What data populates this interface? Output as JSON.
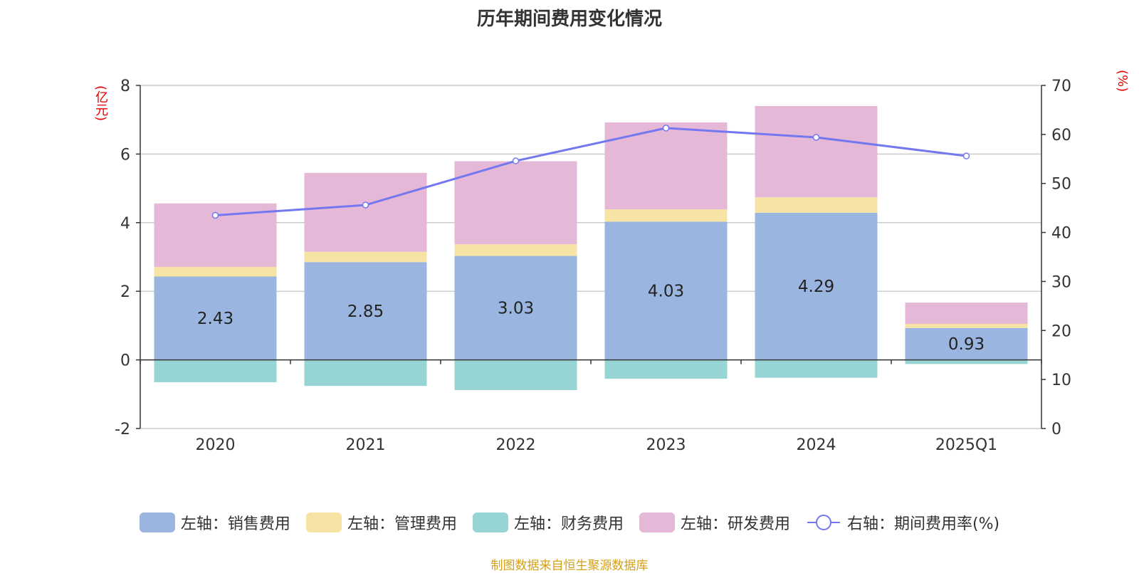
{
  "chart_data": {
    "type": "bar",
    "title": "历年期间费用变化情况",
    "left_unit": "(亿元)",
    "right_unit": "(%)",
    "categories": [
      "2020",
      "2021",
      "2022",
      "2023",
      "2024",
      "2025Q1"
    ],
    "left_axis": {
      "ylim": [
        -2,
        8
      ],
      "ticks": [
        "-2",
        "0",
        "2",
        "4",
        "6",
        "8"
      ]
    },
    "right_axis": {
      "ylim": [
        0,
        70
      ],
      "ticks": [
        "0",
        "10",
        "20",
        "30",
        "40",
        "50",
        "60",
        "70"
      ]
    },
    "grid": true,
    "legend_position": "bottom",
    "series": [
      {
        "name": "左轴：销售费用",
        "type": "bar",
        "axis": "left",
        "color": "#9ab6e0",
        "values": [
          2.43,
          2.85,
          3.03,
          4.03,
          4.29,
          0.93
        ],
        "labels": [
          "2.43",
          "2.85",
          "3.03",
          "4.03",
          "4.29",
          "0.93"
        ]
      },
      {
        "name": "左轴：管理费用",
        "type": "bar",
        "axis": "left",
        "color": "#f7e3a3",
        "values": [
          0.28,
          0.3,
          0.34,
          0.36,
          0.45,
          0.12
        ]
      },
      {
        "name": "左轴：财务费用",
        "type": "bar",
        "axis": "left",
        "color": "#97d4d4",
        "values": [
          -0.65,
          -0.76,
          -0.88,
          -0.55,
          -0.52,
          -0.12
        ]
      },
      {
        "name": "左轴：研发费用",
        "type": "bar",
        "axis": "left",
        "color": "#e6b8d8",
        "values": [
          1.85,
          2.3,
          2.42,
          2.53,
          2.66,
          0.62
        ]
      },
      {
        "name": "右轴：期间费用率(%)",
        "type": "line",
        "axis": "right",
        "color": "#7478f0",
        "values": [
          43.5,
          45.6,
          54.6,
          61.3,
          59.4,
          55.6
        ]
      }
    ]
  },
  "footer": "制图数据来自恒生聚源数据库"
}
